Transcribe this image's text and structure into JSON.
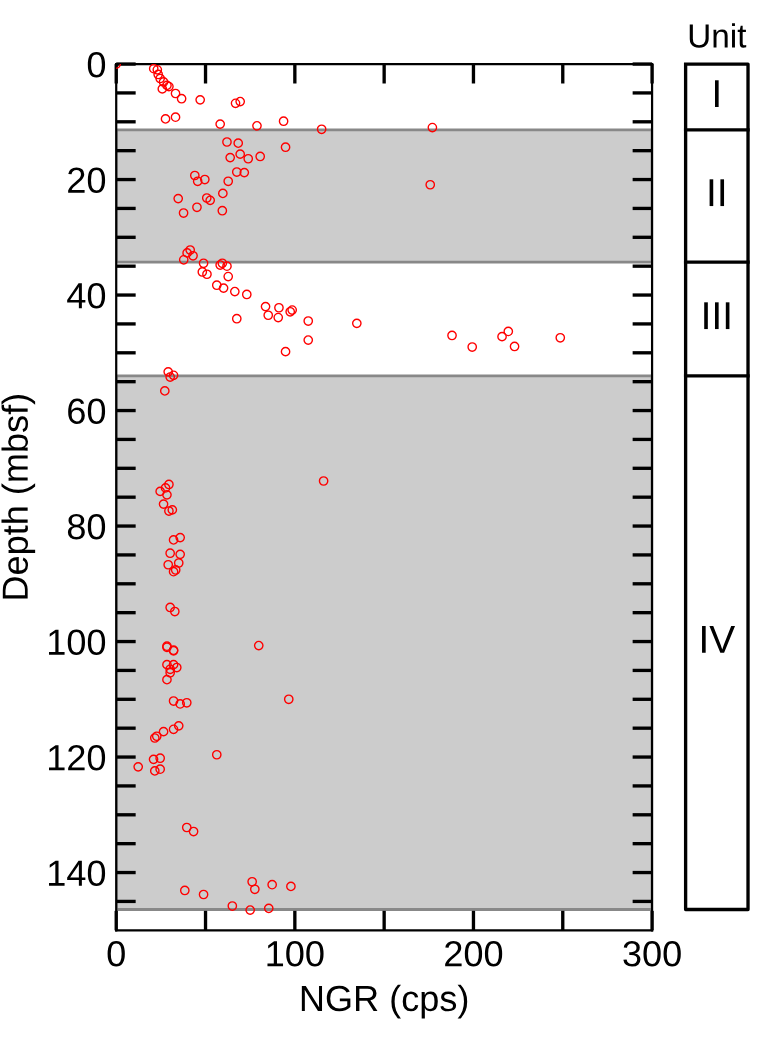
{
  "chart_data": [
    {
      "type": "scatter",
      "xlabel": "NGR (cps)",
      "ylabel": "Depth (mbsf)",
      "xlim": [
        0,
        300
      ],
      "ylim": [
        150,
        0
      ],
      "xticks": [
        0,
        {
          "value": 50,
          "label": null
        },
        100,
        {
          "value": 150,
          "label": null
        },
        200,
        {
          "value": 250,
          "label": null
        },
        300
      ],
      "yticks": [
        0,
        {
          "value": 5,
          "label": null
        },
        {
          "value": 10,
          "label": null
        },
        {
          "value": 15,
          "label": null
        },
        20,
        {
          "value": 25,
          "label": null
        },
        {
          "value": 30,
          "label": null
        },
        {
          "value": 35,
          "label": null
        },
        40,
        {
          "value": 45,
          "label": null
        },
        {
          "value": 50,
          "label": null
        },
        {
          "value": 55,
          "label": null
        },
        60,
        {
          "value": 65,
          "label": null
        },
        {
          "value": 70,
          "label": null
        },
        {
          "value": 75,
          "label": null
        },
        80,
        {
          "value": 85,
          "label": null
        },
        {
          "value": 90,
          "label": null
        },
        {
          "value": 95,
          "label": null
        },
        100,
        {
          "value": 105,
          "label": null
        },
        {
          "value": 110,
          "label": null
        },
        {
          "value": 115,
          "label": null
        },
        120,
        {
          "value": 125,
          "label": null
        },
        {
          "value": 130,
          "label": null
        },
        {
          "value": 135,
          "label": null
        },
        140,
        {
          "value": 145,
          "label": null
        }
      ],
      "grid": false,
      "legend": false,
      "marker": "circle",
      "bands": [
        {
          "axis": "y",
          "from": 11.4,
          "to": 34.3,
          "color": "#cccccc"
        },
        {
          "axis": "y",
          "from": 54,
          "to": 146.4,
          "color": "#cccccc"
        }
      ],
      "series": [
        {
          "color": "#ff0000",
          "x": [
            0,
            21,
            23,
            23.5,
            24.6,
            26.5,
            28.4,
            29.5,
            25.8,
            33.2,
            36.6,
            47,
            66.8,
            69.4,
            27.6,
            33.2,
            58.2,
            78.8,
            93.7,
            115,
            177,
            175.8,
            62,
            68.3,
            63.8,
            69.4,
            73.9,
            80.6,
            94.8,
            67.5,
            71.7,
            62.7,
            44,
            49.6,
            45.6,
            59.7,
            50.7,
            52.6,
            34.7,
            45.2,
            37.7,
            59.4,
            41.4,
            39.7,
            43,
            37.8,
            58.2,
            62,
            48.9,
            59.4,
            48.2,
            50.8,
            62.7,
            56.3,
            60.1,
            66.4,
            73.1,
            83.6,
            85.1,
            91.1,
            90.7,
            97.4,
            98.5,
            107.5,
            134.7,
            67.5,
            107.5,
            94.8,
            188,
            199.3,
            216,
            219.5,
            223,
            248.6,
            29.1,
            32.1,
            30.2,
            27.2,
            116.1,
            29.5,
            27.6,
            24.6,
            28.4,
            26.5,
            29.5,
            31.4,
            32.1,
            35.8,
            30.2,
            35.8,
            29.1,
            35,
            32.1,
            33.3,
            30.2,
            32.8,
            79.8,
            28.4,
            32.1,
            28.4,
            32.1,
            28.4,
            32.1,
            30.2,
            28.4,
            30.2,
            33.9,
            32.1,
            35.8,
            39.5,
            96.6,
            35,
            32.1,
            26.5,
            22.7,
            21.6,
            56.3,
            12.3,
            20.9,
            24.6,
            21.6,
            24.6,
            39.5,
            43.3,
            38.4,
            48.9,
            76.1,
            77.6,
            87.3,
            97.8,
            65,
            75,
            85.4
          ],
          "values": [
            0,
            0.8,
            1,
            1.8,
            2.5,
            3.1,
            3.7,
            3.9,
            4.3,
            5.1,
            6,
            6.2,
            6.8,
            6.5,
            9.5,
            9.2,
            10.4,
            10.7,
            9.9,
            11.3,
            11,
            20.9,
            13.5,
            13.7,
            16.2,
            15.6,
            16.4,
            16,
            14.4,
            18.7,
            18.8,
            20.3,
            19.3,
            20,
            20.3,
            22.4,
            23.2,
            23.6,
            23.3,
            24.8,
            25.8,
            25.4,
            32.2,
            32.7,
            33.2,
            33.9,
            34.8,
            35,
            34.5,
            34.5,
            36,
            36.4,
            36.8,
            38.3,
            38.8,
            39.4,
            39.9,
            42,
            43.5,
            42.2,
            43.9,
            42.9,
            42.6,
            44.5,
            44.9,
            44.1,
            47.8,
            49.8,
            47,
            49,
            47.2,
            46.3,
            48.9,
            47.4,
            53.3,
            53.9,
            54.2,
            56.6,
            72.2,
            72.8,
            73.4,
            74,
            74.6,
            76.2,
            77.4,
            77.2,
            82.4,
            82,
            84.7,
            84.9,
            86.7,
            86.4,
            87.9,
            87.6,
            94.1,
            94.8,
            100.7,
            100.8,
            101.5,
            101,
            101.6,
            104,
            104,
            104.8,
            106.6,
            105.4,
            104.5,
            110.3,
            110.8,
            110.6,
            110,
            114.6,
            115.2,
            115.6,
            116.4,
            116.7,
            119.6,
            121.7,
            120.4,
            120.2,
            122.4,
            122.1,
            132.2,
            132.9,
            143.1,
            143.8,
            141.6,
            142.9,
            142.1,
            142.4,
            145.8,
            146.5,
            146.2
          ]
        }
      ]
    },
    {
      "type": "other",
      "title": "Unit",
      "annotations": [
        "I",
        "II",
        "III",
        "IV"
      ]
    }
  ]
}
